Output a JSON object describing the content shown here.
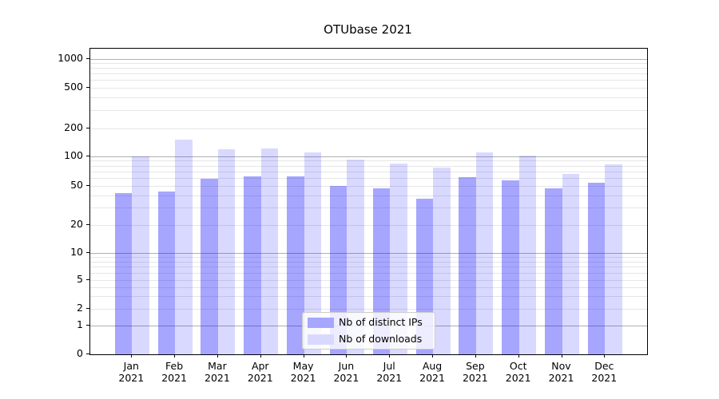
{
  "chart_data": {
    "type": "bar",
    "title": "OTUbase 2021",
    "categories": [
      "Jan 2021",
      "Feb 2021",
      "Mar 2021",
      "Apr 2021",
      "May 2021",
      "Jun 2021",
      "Jul 2021",
      "Aug 2021",
      "Sep 2021",
      "Oct 2021",
      "Nov 2021",
      "Dec 2021"
    ],
    "series": [
      {
        "name": "Nb of distinct IPs",
        "color": "#0000ff",
        "alpha": 0.35,
        "values": [
          42,
          44,
          59,
          62,
          62,
          50,
          47,
          37,
          61,
          57,
          47,
          54
        ]
      },
      {
        "name": "Nb of downloads",
        "color": "#0000ff",
        "alpha": 0.15,
        "values": [
          100,
          150,
          119,
          122,
          110,
          93,
          84,
          77,
          110,
          102,
          66,
          83
        ]
      }
    ],
    "xlabel": "",
    "ylabel": "",
    "yscale": "symlog",
    "yticks": [
      0,
      1,
      2,
      5,
      10,
      20,
      50,
      100,
      200,
      500,
      1000
    ],
    "ylim": [
      0,
      1100
    ],
    "grid": true,
    "legend_position": "lower center",
    "gridline_major_color": "#b0b0b0",
    "gridline_minor_color": "#e6e6e6",
    "background_color": "#ffffff"
  }
}
